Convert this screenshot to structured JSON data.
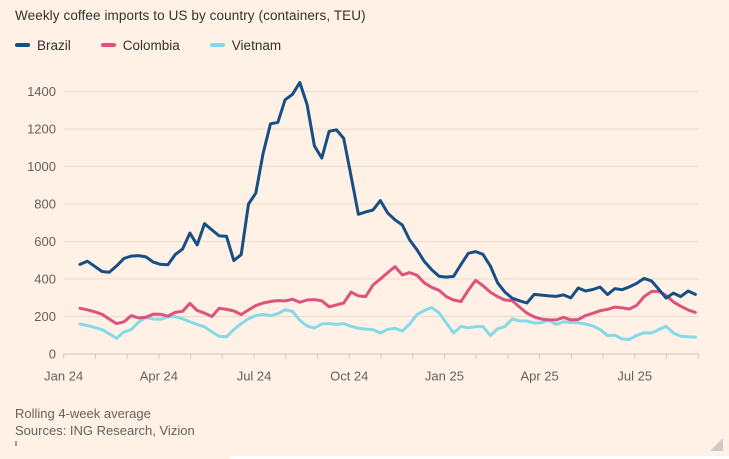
{
  "header": {
    "title": "Weekly coffee imports to US by country (containers, TEU)"
  },
  "footer": {
    "note": "Rolling 4-week average",
    "sources": "Sources: ING Research, Vizion"
  },
  "colors": {
    "background": "#fff1e5",
    "title_text": "#33302e",
    "axis_text": "#66605c",
    "gridline": "#ecdbcc",
    "axis_line": "#d6c5b6",
    "brazil": "#174f85",
    "colombia": "#df527b",
    "vietnam": "#86d9e8"
  },
  "chart_data": {
    "type": "line",
    "title": "Weekly coffee imports to US by country (containers, TEU)",
    "xlabel": "",
    "ylabel": "containers, TEU",
    "x_start_date": "2024-01-16",
    "x_interval": "weekly",
    "n_points": 85,
    "ylim": [
      0,
      1400
    ],
    "yticks": [
      0,
      200,
      400,
      600,
      800,
      1000,
      1200,
      1400
    ],
    "xticks": [
      {
        "label": "Jan 24",
        "month_offset": 0
      },
      {
        "label": "Apr 24",
        "month_offset": 3
      },
      {
        "label": "Jul 24",
        "month_offset": 6
      },
      {
        "label": "Oct 24",
        "month_offset": 9
      },
      {
        "label": "Jan 25",
        "month_offset": 12
      },
      {
        "label": "Apr 25",
        "month_offset": 15
      },
      {
        "label": "Jul 25",
        "month_offset": 18
      }
    ],
    "minor_ticks_every_month": true,
    "minor_tick_month_count": 21,
    "grid": "horizontal",
    "legend_position": "top-left",
    "series": [
      {
        "name": "Brazil",
        "color": "#174f85",
        "values": [
          478,
          495,
          468,
          440,
          436,
          470,
          510,
          522,
          525,
          518,
          490,
          478,
          476,
          530,
          560,
          645,
          582,
          695,
          662,
          630,
          628,
          498,
          530,
          800,
          858,
          1070,
          1228,
          1235,
          1356,
          1385,
          1448,
          1330,
          1110,
          1045,
          1188,
          1196,
          1150,
          948,
          745,
          758,
          768,
          818,
          752,
          716,
          688,
          608,
          556,
          494,
          450,
          415,
          410,
          414,
          478,
          537,
          546,
          532,
          470,
          380,
          330,
          298,
          284,
          272,
          318,
          314,
          310,
          307,
          315,
          299,
          352,
          336,
          344,
          357,
          317,
          349,
          343,
          358,
          377,
          403,
          390,
          345,
          298,
          325,
          306,
          336,
          318
        ]
      },
      {
        "name": "Colombia",
        "color": "#df527b",
        "values": [
          244,
          236,
          225,
          212,
          186,
          162,
          172,
          205,
          192,
          196,
          213,
          212,
          202,
          222,
          228,
          270,
          232,
          218,
          200,
          244,
          238,
          230,
          210,
          235,
          258,
          272,
          280,
          285,
          283,
          292,
          276,
          288,
          290,
          284,
          252,
          262,
          272,
          330,
          310,
          306,
          368,
          400,
          434,
          466,
          422,
          434,
          420,
          380,
          356,
          340,
          306,
          288,
          280,
          340,
          393,
          365,
          330,
          306,
          288,
          285,
          250,
          218,
          198,
          186,
          183,
          182,
          196,
          182,
          184,
          205,
          217,
          231,
          238,
          250,
          246,
          240,
          260,
          306,
          333,
          335,
          312,
          278,
          255,
          235,
          222
        ]
      },
      {
        "name": "Vietnam",
        "color": "#86d9e8",
        "values": [
          160,
          152,
          142,
          130,
          108,
          84,
          118,
          130,
          170,
          195,
          186,
          185,
          198,
          200,
          188,
          172,
          158,
          145,
          118,
          94,
          92,
          130,
          162,
          188,
          205,
          212,
          205,
          215,
          236,
          228,
          180,
          150,
          138,
          160,
          162,
          158,
          162,
          148,
          137,
          133,
          130,
          112,
          132,
          137,
          122,
          160,
          210,
          232,
          248,
          220,
          166,
          112,
          148,
          140,
          146,
          146,
          98,
          135,
          146,
          188,
          176,
          176,
          165,
          167,
          180,
          158,
          172,
          168,
          167,
          160,
          150,
          130,
          98,
          101,
          80,
          78,
          100,
          113,
          112,
          130,
          148,
          112,
          95,
          92,
          90
        ]
      }
    ]
  }
}
